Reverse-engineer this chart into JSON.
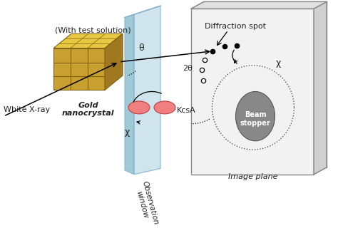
{
  "bg_color": "#ffffff",
  "figsize": [
    4.74,
    3.2
  ],
  "dpi": 100,
  "labels": {
    "white_xray": "White X-ray",
    "gold_nano": "Gold\nnanocrystal",
    "with_test": "(With test solution)",
    "observation": "Observation\nwindow",
    "kcsa": "KcsA",
    "image_plane": "Image plane",
    "beam_stopper": "Beam\nstopper",
    "diffraction_spot": "Diffraction spot",
    "theta": "θ",
    "two_theta": "2θ",
    "chi": "χ"
  },
  "colors": {
    "gold_front": "#c8a030",
    "gold_top": "#e8c840",
    "gold_right": "#a07820",
    "gold_edge": "#806010",
    "window_fill": "#c0dce8",
    "window_edge": "#80b0c8",
    "window_side": "#90c0d0",
    "ip_fill": "#f2f2f2",
    "ip_edge": "#888888",
    "ip_side": "#d0d0d0",
    "beam_stopper_fill": "#888888",
    "beam_stopper_edge": "#555555",
    "kcsa_fill": "#f08080",
    "kcsa_edge": "#c04040"
  }
}
